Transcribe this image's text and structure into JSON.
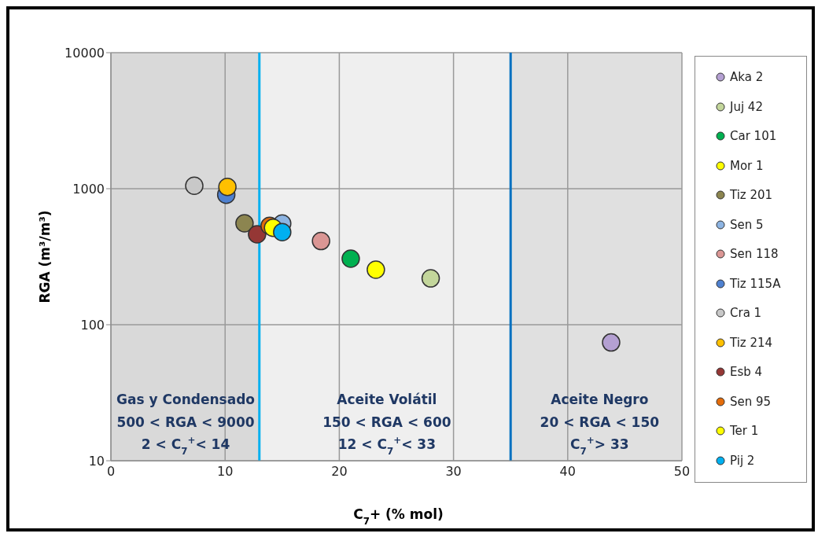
{
  "chart_data": {
    "type": "scatter",
    "xlabel": "C$_{7}$+ (% mol)",
    "ylabel": "RGA (m³/m³)",
    "xlim": [
      0,
      50
    ],
    "xticks": [
      0,
      10,
      20,
      30,
      40,
      50
    ],
    "ylim": [
      10,
      10000
    ],
    "yticks": [
      10,
      100,
      1000,
      10000
    ],
    "log": "y",
    "grid": true,
    "legend": "right",
    "marker": "circle",
    "series": [
      {
        "name": "Aka 2",
        "color": "#b4a0d2",
        "x": [
          43.8
        ],
        "values": [
          74
        ]
      },
      {
        "name": "Juj 42",
        "color": "#c3d69b",
        "x": [
          28.0
        ],
        "values": [
          219
        ]
      },
      {
        "name": "Car 101",
        "color": "#00b050",
        "x": [
          21.0
        ],
        "values": [
          306
        ]
      },
      {
        "name": "Mor 1",
        "color": "#ffff00",
        "x": [
          23.2
        ],
        "values": [
          254
        ]
      },
      {
        "name": "Tiz 201",
        "color": "#8c8550",
        "x": [
          11.7
        ],
        "values": [
          557
        ]
      },
      {
        "name": "Sen 5",
        "color": "#8db4e2",
        "x": [
          15.0
        ],
        "values": [
          555
        ]
      },
      {
        "name": "Sen 118",
        "color": "#da9694",
        "x": [
          18.4
        ],
        "values": [
          412
        ]
      },
      {
        "name": "Tiz 115A",
        "color": "#4f81d0",
        "x": [
          10.1
        ],
        "values": [
          903
        ]
      },
      {
        "name": "Cra 1",
        "color": "#c8c8c8",
        "x": [
          7.3
        ],
        "values": [
          1052
        ]
      },
      {
        "name": "Tiz 214",
        "color": "#ffc000",
        "x": [
          10.2
        ],
        "values": [
          1031
        ]
      },
      {
        "name": "Esb 4",
        "color": "#953735",
        "x": [
          12.8
        ],
        "values": [
          462
        ]
      },
      {
        "name": "Sen 95",
        "color": "#e46c0a",
        "x": [
          13.9
        ],
        "values": [
          533
        ]
      },
      {
        "name": "Ter 1",
        "color": "#ffff00",
        "x": [
          14.2
        ],
        "values": [
          516
        ]
      },
      {
        "name": "Pij 2",
        "color": "#00b0f0",
        "x": [
          15.0
        ],
        "values": [
          479
        ]
      }
    ],
    "ref_lines": [
      {
        "axis": "x",
        "value": 13,
        "color": "#00b0f0"
      },
      {
        "axis": "x",
        "value": 35,
        "color": "#0070c0"
      }
    ],
    "bands": [
      {
        "axis": "x",
        "from": 0,
        "to": 13,
        "color": "#d9d9d9"
      },
      {
        "axis": "x",
        "from": 13,
        "to": 35,
        "color": "#efefef"
      },
      {
        "axis": "x",
        "from": 35,
        "to": 50,
        "color": "#e0e0e0"
      }
    ],
    "annotations": [
      "Gas y Condensado\n500 < RGA < 9000\n2 < C$_{7}$$^{+}$< 14",
      "Aceite Volátil\n150 < RGA < 600\n12 < C$_{7}$$^{+}$< 33",
      "Aceite Negro\n20 < RGA < 150\nC$_{7}$$^{+}$> 33"
    ]
  }
}
